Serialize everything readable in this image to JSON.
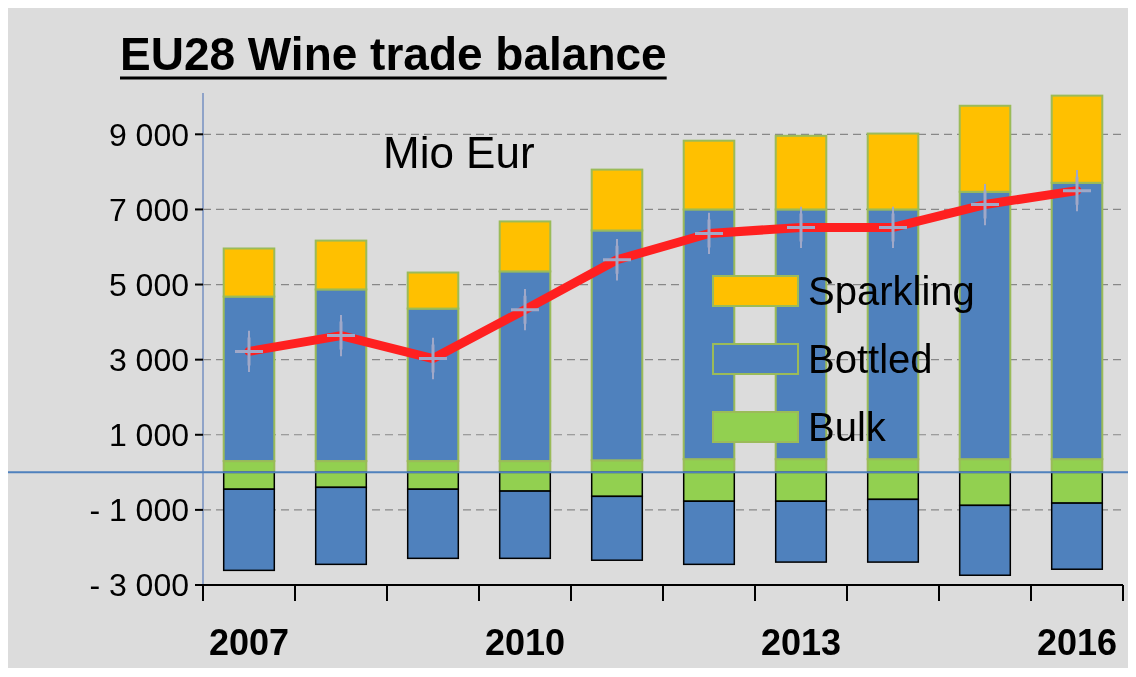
{
  "chart_data": {
    "type": "bar",
    "stacked": true,
    "title": "EU28 Wine trade balance",
    "annotations": [
      "Mio Eur"
    ],
    "categories": [
      "2007",
      null,
      null,
      "2010",
      null,
      null,
      "2013",
      null,
      null,
      "2016"
    ],
    "ylim": [
      -3000,
      10100
    ],
    "yticks": [
      {
        "value": -3000,
        "label": "- 3 000"
      },
      {
        "value": -1000,
        "label": "- 1 000"
      },
      {
        "value": 1000,
        "label": "1 000"
      },
      {
        "value": 3000,
        "label": "3 000"
      },
      {
        "value": 5000,
        "label": "5 000"
      },
      {
        "value": 7000,
        "label": "7 000"
      },
      {
        "value": 9000,
        "label": "9 000"
      }
    ],
    "grid": "y",
    "legend": "right",
    "ref_lines": [
      {
        "axis": "y",
        "value": 0,
        "color": "#4f81bd"
      }
    ],
    "series": [
      {
        "name": "Bulk",
        "color": "#92d050",
        "values": [
          300,
          300,
          300,
          300,
          320,
          350,
          350,
          350,
          350,
          350
        ]
      },
      {
        "name": "Bottled",
        "color": "#4f81bd",
        "values": [
          4380,
          4570,
          4060,
          5050,
          6120,
          6650,
          6650,
          6650,
          7120,
          7360
        ]
      },
      {
        "name": "Sparkling",
        "color": "#ffc000",
        "values": [
          1280,
          1300,
          960,
          1330,
          1620,
          1830,
          1960,
          2020,
          2290,
          2320
        ]
      },
      {
        "color": "#92d050",
        "values": [
          -450,
          -400,
          -450,
          -500,
          -640,
          -770,
          -770,
          -720,
          -880,
          -820
        ]
      },
      {
        "color": "#4f81bd",
        "values": [
          -2160,
          -2050,
          -1840,
          -1790,
          -1700,
          -1680,
          -1620,
          -1670,
          -1860,
          -1760
        ]
      },
      {
        "type": "line",
        "color": "#ff2020",
        "marker": "cross",
        "line_style": "solid",
        "values": [
          3220,
          3640,
          3030,
          4330,
          5660,
          6360,
          6520,
          6520,
          7130,
          7500
        ],
        "errors": [
          550,
          550,
          550,
          550,
          550,
          550,
          550,
          550,
          550,
          550
        ]
      }
    ]
  }
}
